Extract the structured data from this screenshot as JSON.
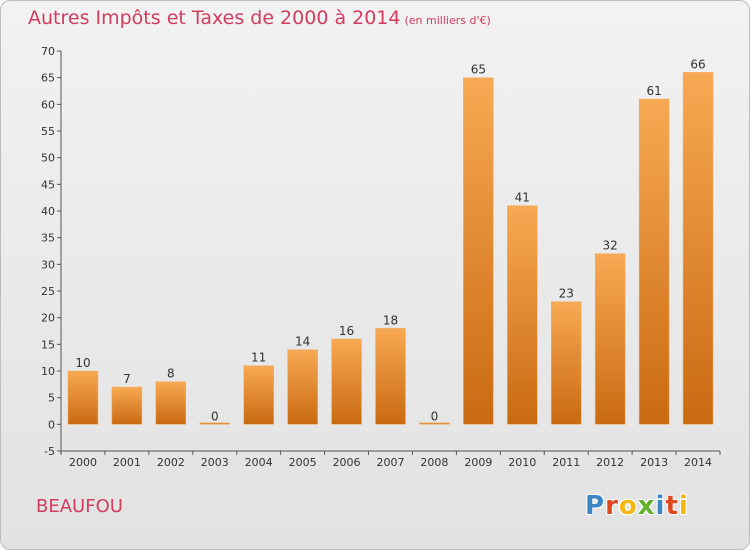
{
  "chart_data": {
    "type": "bar",
    "title": "Autres Impôts et Taxes de 2000 à 2014",
    "subtitle": "(en milliers d'€)",
    "categories": [
      "2000",
      "2001",
      "2002",
      "2003",
      "2004",
      "2005",
      "2006",
      "2007",
      "2008",
      "2009",
      "2010",
      "2011",
      "2012",
      "2013",
      "2014"
    ],
    "values": [
      10,
      7,
      8,
      0,
      11,
      14,
      16,
      18,
      0,
      65,
      41,
      23,
      32,
      61,
      66
    ],
    "ylim": [
      -5,
      70
    ],
    "yticks": [
      -5,
      0,
      5,
      10,
      15,
      20,
      25,
      30,
      35,
      40,
      45,
      50,
      55,
      60,
      65,
      70
    ],
    "grid": false,
    "legend": "none",
    "colors": {
      "bar_light": "#f8a953",
      "bar_dark": "#c96a12",
      "title": "#d23c5f"
    }
  },
  "footer": {
    "town": "BEAUFOU",
    "logo_letters": [
      {
        "ch": "P",
        "color": "#3e86c7"
      },
      {
        "ch": "r",
        "color": "#e2481f"
      },
      {
        "ch": "o",
        "color": "#f5b612"
      },
      {
        "ch": "x",
        "color": "#64b22b"
      },
      {
        "ch": "i",
        "color": "#3e86c7"
      },
      {
        "ch": "t",
        "color": "#e2481f"
      },
      {
        "ch": "i",
        "color": "#f5b612"
      }
    ]
  }
}
